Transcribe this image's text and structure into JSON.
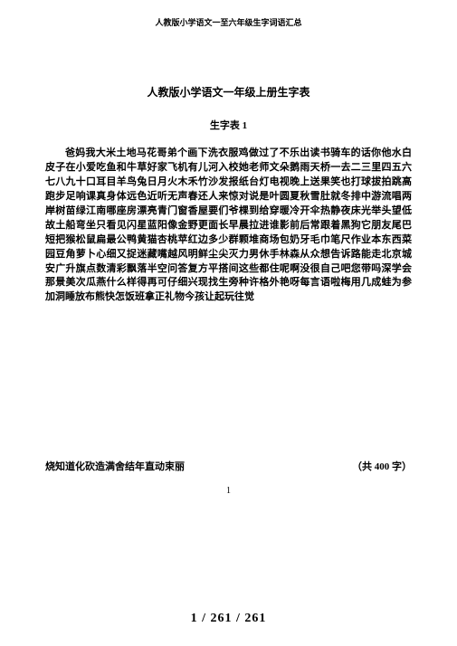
{
  "header": "人教版小学语文一至六年级生字词语汇总",
  "title": "人教版小学语文一年级上册生字表",
  "subtitle": "生字表 1",
  "body": "爸妈我大米土地马花哥弟个画下洗衣服鸡做过了不乐出读书骑车的话你他水白皮子在小爱吃鱼和牛草好家飞机有儿河入校她老师文朵鹅雨天桥一去二三里四五六七八九十口耳目羊鸟兔日月火木禾竹沙发报纸台灯电视晚上送果笑也打球拔拍跳高跑步足响课真身体远色近听无声春还人来惊对说是叶圆夏秋雪肚就冬排中游流唱两岸树苗绿江南哪座房漂亮青门窗香屋要们爷棵到给穿暖冷开伞热静夜床光举头望低故土船弯坐只看见闪星蓝阳像金野更面长早晨拉进谁影前后常跟着黑狗它朋友尾巴短把猴松鼠扁最公鸭黄猫杏桃苹红边多少群颗堆商场包奶牙毛巾笔尺作业本东西菜园豆角萝卜心细又捉迷藏嘴越风明鲜尘尖灭力男休手林森从众想告诉路能走北京城安广升旗点数清彩飘落半空问答复方平搭间这些都住呢啊没很自己吧您带吗深学会那景美次瓜燕什么样得再可仔细兴现找生旁种许格外艳呀每言语啦梅用几成蛙为参加洞睡放布熊快怎饭班拿正礼物今孩让起玩往觉",
  "footerLeft": "烧知道化砍造满舍结年直动束丽",
  "footerRight": "（共 400 字）",
  "pageSmall": "1",
  "pageLarge": "1 / 261 / 261"
}
